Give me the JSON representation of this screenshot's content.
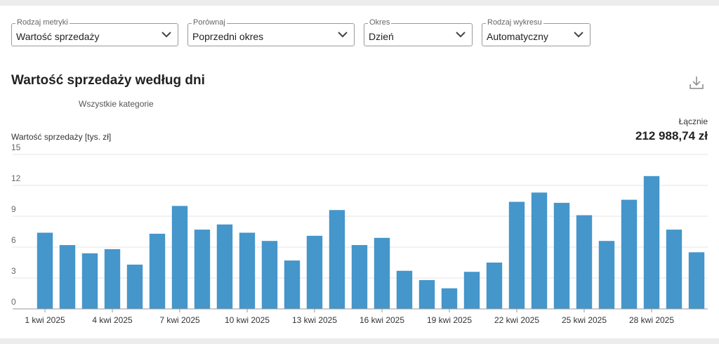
{
  "filters": [
    {
      "label": "Rodzaj metryki",
      "value": "Wartość sprzedaży"
    },
    {
      "label": "Porównaj",
      "value": "Poprzedni okres"
    },
    {
      "label": "Okres",
      "value": "Dzień"
    },
    {
      "label": "Rodzaj wykresu",
      "value": "Automatyczny"
    }
  ],
  "icons": {
    "chevron": "chevron-down-icon",
    "download": "download-icon"
  },
  "colors": {
    "bar": "#4596cb",
    "grid": "#e6e6e6",
    "axis": "#9a9a9a"
  },
  "total": {
    "label": "Łącznie",
    "value": "212 988,74 zł"
  },
  "chart_data": {
    "type": "bar",
    "title": "Wartość sprzedaży według dni",
    "subtitle": "Wszystkie kategorie",
    "ylabel": "Wartość sprzedaży [tys. zł]",
    "xlabel": "",
    "ylim": [
      0,
      15
    ],
    "yticks": [
      0,
      3,
      6,
      9,
      12,
      15
    ],
    "grid": true,
    "categories": [
      "1 kwi 2025",
      "2 kwi 2025",
      "3 kwi 2025",
      "4 kwi 2025",
      "5 kwi 2025",
      "6 kwi 2025",
      "7 kwi 2025",
      "8 kwi 2025",
      "9 kwi 2025",
      "10 kwi 2025",
      "11 kwi 2025",
      "12 kwi 2025",
      "13 kwi 2025",
      "14 kwi 2025",
      "15 kwi 2025",
      "16 kwi 2025",
      "17 kwi 2025",
      "18 kwi 2025",
      "19 kwi 2025",
      "20 kwi 2025",
      "21 kwi 2025",
      "22 kwi 2025",
      "23 kwi 2025",
      "24 kwi 2025",
      "25 kwi 2025",
      "26 kwi 2025",
      "27 kwi 2025",
      "28 kwi 2025",
      "29 kwi 2025",
      "30 kwi 2025"
    ],
    "xtick_labels": [
      "1 kwi 2025",
      "4 kwi 2025",
      "7 kwi 2025",
      "10 kwi 2025",
      "13 kwi 2025",
      "16 kwi 2025",
      "19 kwi 2025",
      "22 kwi 2025",
      "25 kwi 2025",
      "28 kwi 2025"
    ],
    "values": [
      7.4,
      6.2,
      5.4,
      5.8,
      4.3,
      7.3,
      10.0,
      7.7,
      8.2,
      7.4,
      6.6,
      4.7,
      7.1,
      9.6,
      6.2,
      6.9,
      3.7,
      2.8,
      2.0,
      3.6,
      4.5,
      10.4,
      11.3,
      10.3,
      9.1,
      6.6,
      10.6,
      12.9,
      7.7,
      5.5
    ]
  }
}
